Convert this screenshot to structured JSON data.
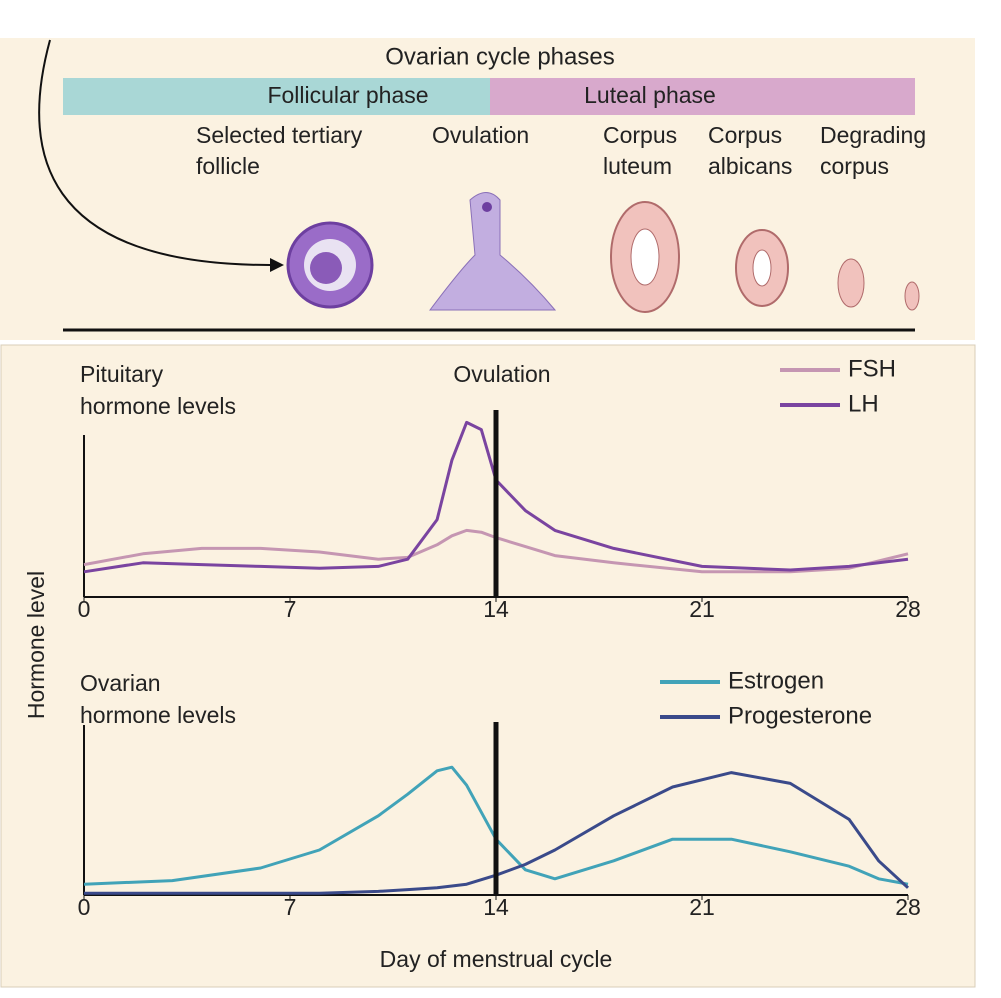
{
  "diagram": {
    "title": "Ovarian cycle phases",
    "phases": [
      "Follicular phase",
      "Luteal phase"
    ],
    "stages": [
      [
        "Selected tertiary",
        "follicle"
      ],
      [
        "Ovulation"
      ],
      [
        "Corpus",
        "luteum"
      ],
      [
        "Corpus",
        "albicans"
      ],
      [
        "Degrading",
        "corpus"
      ]
    ],
    "y_label": "Hormone level"
  },
  "chart_data": [
    {
      "type": "line",
      "title_lines": [
        "Pituitary",
        "hormone levels"
      ],
      "x": [
        0,
        2,
        4,
        6,
        8,
        10,
        11,
        12,
        12.5,
        13,
        13.5,
        14,
        15,
        16,
        18,
        21,
        24,
        26,
        28
      ],
      "series": [
        {
          "name": "FSH",
          "color": "#c596b2",
          "values": [
            18,
            24,
            27,
            27,
            25,
            21,
            22,
            29,
            34,
            37,
            36,
            33,
            28,
            23,
            19,
            14,
            14,
            16,
            24
          ]
        },
        {
          "name": "LH",
          "color": "#7a44a0",
          "values": [
            14,
            19,
            18,
            17,
            16,
            17,
            21,
            43,
            76,
            97,
            93,
            65,
            48,
            37,
            27,
            17,
            15,
            17,
            21
          ]
        }
      ],
      "xlim": [
        0,
        28
      ],
      "xticks": [
        0,
        7,
        14,
        21,
        28
      ],
      "ylim": [
        0,
        100
      ],
      "vline": 14,
      "vline_label": "Ovulation",
      "legend": "upper right"
    },
    {
      "type": "line",
      "title_lines": [
        "Ovarian",
        "hormone levels"
      ],
      "xlabel": "Day of menstrual cycle",
      "x": [
        0,
        3,
        6,
        8,
        10,
        11,
        12,
        12.5,
        13,
        14,
        15,
        16,
        18,
        20,
        22,
        24,
        26,
        27,
        28
      ],
      "series": [
        {
          "name": "Estrogen",
          "color": "#41a3b8",
          "values": [
            6,
            8,
            15,
            25,
            44,
            56,
            69,
            71,
            61,
            31,
            14,
            9,
            19,
            31,
            31,
            24,
            16,
            9,
            6
          ]
        },
        {
          "name": "Progesterone",
          "color": "#3a4a8a",
          "values": [
            1,
            1,
            1,
            1,
            2,
            3,
            4,
            5,
            6,
            11,
            17,
            25,
            44,
            60,
            68,
            62,
            42,
            19,
            4
          ]
        }
      ],
      "xlim": [
        0,
        28
      ],
      "xticks": [
        0,
        7,
        14,
        21,
        28
      ],
      "ylim": [
        0,
        100
      ],
      "vline": 14,
      "legend": "upper right"
    }
  ]
}
